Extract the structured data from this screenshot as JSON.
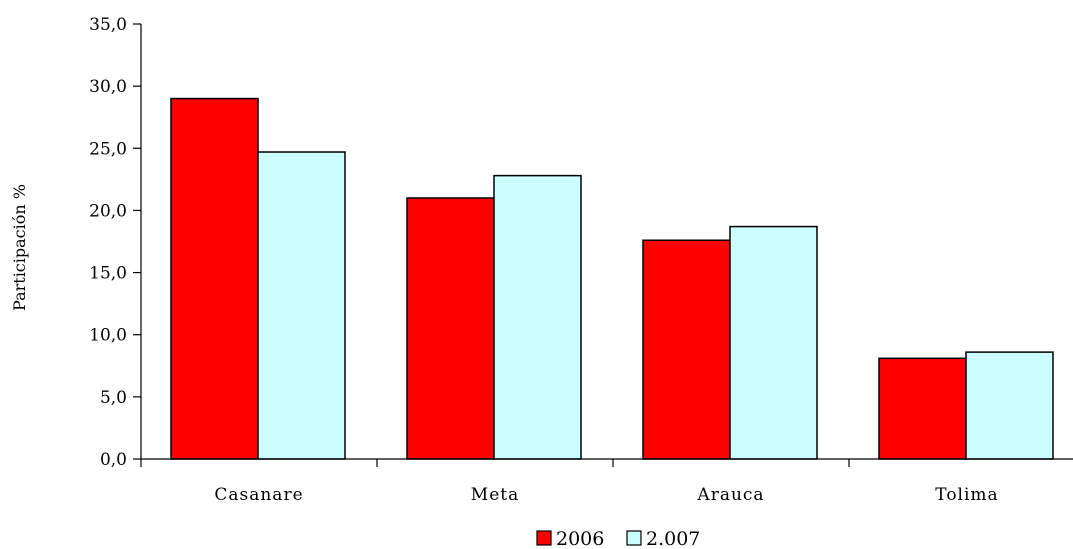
{
  "chart_data": {
    "type": "bar",
    "categories": [
      "Casanare",
      "Meta",
      "Arauca",
      "Tolima"
    ],
    "series": [
      {
        "name": "2006",
        "values": [
          29.0,
          21.0,
          17.6,
          8.1
        ],
        "color": "#ff0000"
      },
      {
        "name": "2.007",
        "values": [
          24.7,
          22.8,
          18.7,
          8.6
        ],
        "color": "#ccffff"
      }
    ],
    "ylabel": "Participación %",
    "ylim": [
      0,
      35
    ],
    "yticks": [
      "0,0",
      "5,0",
      "10,0",
      "15,0",
      "20,0",
      "25,0",
      "30,0",
      "35,0"
    ],
    "ytick_values": [
      0,
      5,
      10,
      15,
      20,
      25,
      30,
      35
    ],
    "legend_position": "bottom",
    "grid": false
  }
}
